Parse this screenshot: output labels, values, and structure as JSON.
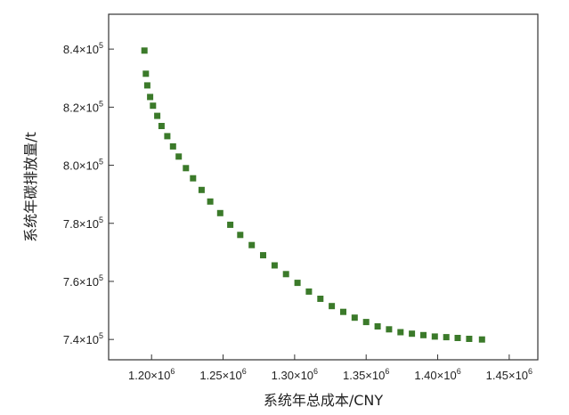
{
  "chart_data": {
    "type": "scatter",
    "title": "",
    "xlabel": "系统年总成本/CNY",
    "ylabel": "系统年碳排放量/t",
    "xlim": [
      1170000.0,
      1470000.0
    ],
    "ylim": [
      733000.0,
      852000.0
    ],
    "grid": false,
    "legend": "none",
    "marker": "square",
    "color": "#3b7a2a",
    "x_ticks": [
      {
        "value": 1200000.0,
        "mantissa": "1.20×10",
        "exp": "6"
      },
      {
        "value": 1250000.0,
        "mantissa": "1.25×10",
        "exp": "6"
      },
      {
        "value": 1300000.0,
        "mantissa": "1.30×10",
        "exp": "6"
      },
      {
        "value": 1350000.0,
        "mantissa": "1.35×10",
        "exp": "6"
      },
      {
        "value": 1400000.0,
        "mantissa": "1.40×10",
        "exp": "6"
      },
      {
        "value": 1450000.0,
        "mantissa": "1.45×10",
        "exp": "6"
      }
    ],
    "y_ticks": [
      {
        "value": 740000.0,
        "mantissa": "7.4×10",
        "exp": "5"
      },
      {
        "value": 760000.0,
        "mantissa": "7.6×10",
        "exp": "5"
      },
      {
        "value": 780000.0,
        "mantissa": "7.8×10",
        "exp": "5"
      },
      {
        "value": 800000.0,
        "mantissa": "8.0×10",
        "exp": "5"
      },
      {
        "value": 820000.0,
        "mantissa": "8.2×10",
        "exp": "5"
      },
      {
        "value": 840000.0,
        "mantissa": "8.4×10",
        "exp": "5"
      }
    ],
    "x": [
      1195000,
      1196000,
      1197000,
      1199000,
      1201000,
      1204000,
      1207000,
      1211000,
      1215000,
      1219000,
      1224000,
      1229000,
      1235000,
      1241000,
      1248000,
      1255000,
      1262000,
      1270000,
      1278000,
      1286000,
      1294000,
      1302000,
      1310000,
      1318000,
      1326000,
      1334000,
      1342000,
      1350000,
      1358000,
      1366000,
      1374000,
      1382000,
      1390000,
      1398000,
      1406000,
      1414000,
      1422000,
      1431000
    ],
    "y": [
      839500,
      831500,
      827500,
      823500,
      820500,
      817000,
      813500,
      810000,
      806500,
      803000,
      799000,
      795500,
      791500,
      787500,
      783500,
      779500,
      776000,
      772500,
      769000,
      765500,
      762500,
      759500,
      756500,
      754000,
      751500,
      749500,
      747500,
      746000,
      744500,
      743500,
      742500,
      742000,
      741500,
      741000,
      740800,
      740500,
      740200,
      740000
    ]
  }
}
